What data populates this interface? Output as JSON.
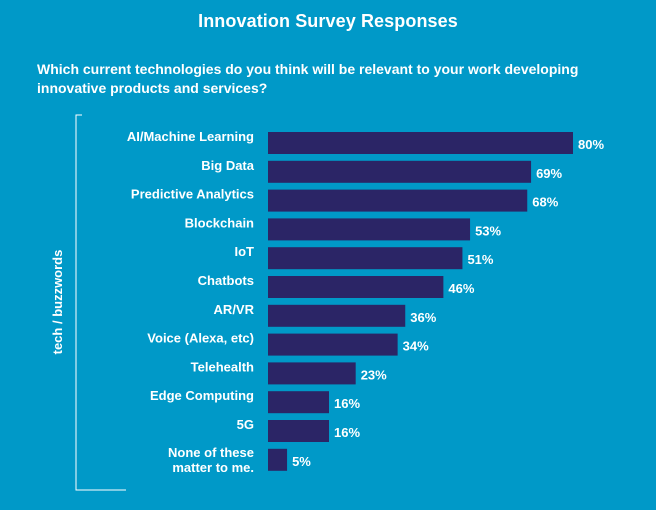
{
  "title": "Innovation Survey Responses",
  "subtitle": "Which current technologies do you think will be relevant to your work developing innovative products and services?",
  "colors": {
    "background": "#0099c8",
    "bar": "#2b2566",
    "text": "#ffffff"
  },
  "chart_data": {
    "type": "bar",
    "orientation": "horizontal",
    "ylabel": "tech / buzzwords",
    "xlabel": "",
    "xlim": [
      0,
      80
    ],
    "grid": false,
    "categories": [
      "AI/Machine Learning",
      "Big Data",
      "Predictive Analytics",
      "Blockchain",
      "IoT",
      "Chatbots",
      "AR/VR",
      "Voice (Alexa, etc)",
      "Telehealth",
      "Edge Computing",
      "5G",
      "None of these matter to me."
    ],
    "values": [
      80,
      69,
      68,
      53,
      51,
      46,
      36,
      34,
      23,
      16,
      16,
      5
    ],
    "value_labels": [
      "80%",
      "69%",
      "68%",
      "53%",
      "51%",
      "46%",
      "36%",
      "34%",
      "23%",
      "16%",
      "16%",
      "5%"
    ]
  }
}
